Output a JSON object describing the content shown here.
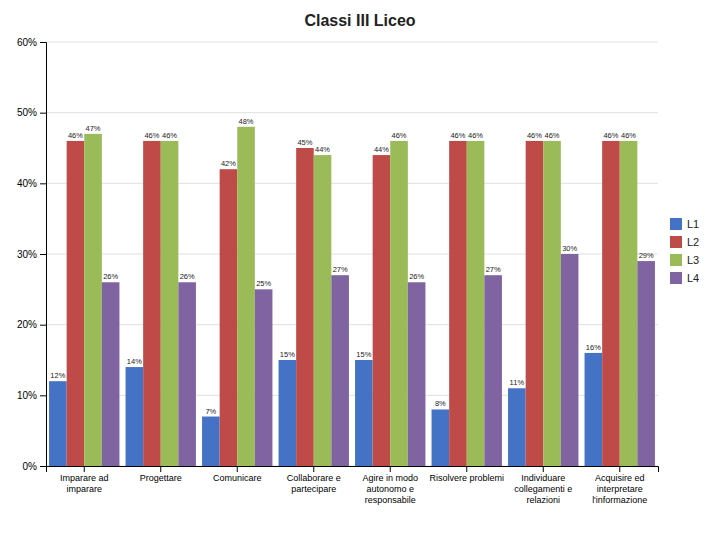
{
  "chart_data": {
    "type": "bar",
    "title": "Classi III Liceo",
    "categories": [
      "Imparare ad\nimparare",
      "Progettare",
      "Comunicare",
      "Collaborare e\npartecipare",
      "Agire in modo\nautonomo e\nresponsabile",
      "Risolvere problemi",
      "Individuare\ncollegamenti e\nrelazioni",
      "Acquisire ed\ninterpretare\nl'informazione"
    ],
    "series": [
      {
        "name": "L1",
        "color": "#4472C4",
        "values": [
          12,
          14,
          7,
          15,
          15,
          8,
          11,
          16
        ],
        "value_labels": [
          "12%",
          "14%",
          "7%",
          "15%",
          "15%",
          "8%",
          "11%",
          "16%"
        ]
      },
      {
        "name": "L2",
        "color": "#BE4B48",
        "values": [
          46,
          46,
          42,
          45,
          44,
          46,
          46,
          46
        ],
        "value_labels": [
          "46%",
          "46%",
          "42%",
          "45%",
          "44%",
          "46%",
          "46%",
          "46%"
        ]
      },
      {
        "name": "L3",
        "color": "#9BBB59",
        "values": [
          47,
          46,
          48,
          44,
          46,
          46,
          46,
          46
        ],
        "value_labels": [
          "47%",
          "46%",
          "48%",
          "44%",
          "46%",
          "46%",
          "46%",
          "46%"
        ]
      },
      {
        "name": "L4",
        "color": "#8064A2",
        "values": [
          26,
          26,
          25,
          27,
          26,
          27,
          30,
          29
        ],
        "value_labels": [
          "26%",
          "26%",
          "25%",
          "27%",
          "26%",
          "27%",
          "30%",
          "29%"
        ]
      }
    ],
    "ylim": [
      0,
      60
    ],
    "yticks": [
      {
        "value": 0,
        "label": "0%"
      },
      {
        "value": 10,
        "label": "10%"
      },
      {
        "value": 20,
        "label": "20%"
      },
      {
        "value": 30,
        "label": "30%"
      },
      {
        "value": 40,
        "label": "40%"
      },
      {
        "value": 50,
        "label": "50%"
      },
      {
        "value": 60,
        "label": "60%"
      }
    ],
    "grid": true,
    "legend": "right",
    "data_labels": true
  }
}
